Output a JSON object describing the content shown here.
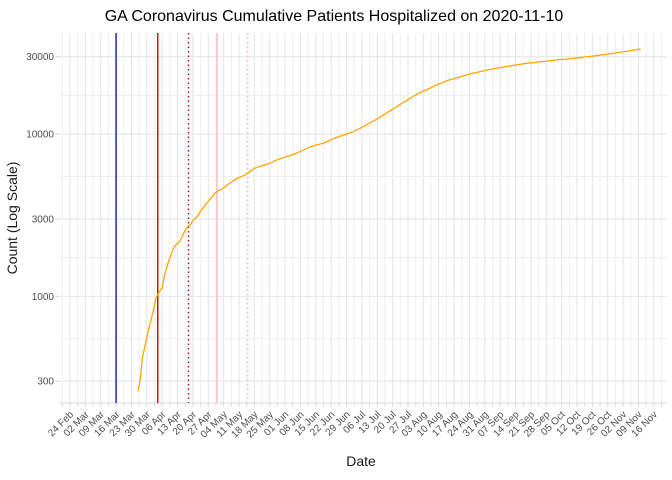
{
  "chart_data": {
    "type": "line",
    "title": "GA Coronavirus Cumulative Patients Hospitalized on 2020-11-10",
    "xlabel": "Date",
    "ylabel": "Count (Log Scale)",
    "x_scale": "date",
    "y_scale": "log10",
    "grid": true,
    "legend": false,
    "x_domain": [
      "2020-02-19",
      "2020-11-22"
    ],
    "y_domain": [
      220,
      42000
    ],
    "y_ticks": [
      300,
      1000,
      3000,
      10000,
      30000
    ],
    "x_tick_start": "2020-02-24",
    "x_tick_interval_days": 7,
    "x_tick_labels": [
      "24 Feb",
      "02 Mar",
      "09 Mar",
      "16 Mar",
      "23 Mar",
      "30 Mar",
      "06 Apr",
      "13 Apr",
      "20 Apr",
      "27 Apr",
      "04 May",
      "11 May",
      "18 May",
      "25 May",
      "01 Jun",
      "08 Jun",
      "15 Jun",
      "22 Jun",
      "29 Jun",
      "06 Jul",
      "13 Jul",
      "20 Jul",
      "27 Jul",
      "03 Aug",
      "10 Aug",
      "17 Aug",
      "24 Aug",
      "31 Aug",
      "07 Sep",
      "14 Sep",
      "21 Sep",
      "28 Sep",
      "05 Oct",
      "12 Oct",
      "19 Oct",
      "26 Oct",
      "02 Nov",
      "09 Nov",
      "16 Nov"
    ],
    "reference_lines": [
      {
        "date": "2020-03-16",
        "color": "#1414CC",
        "style": "solid"
      },
      {
        "date": "2020-04-04",
        "color": "#CC0000",
        "style": "solid"
      },
      {
        "date": "2020-04-18",
        "color": "#CC0000",
        "style": "dotted"
      },
      {
        "date": "2020-05-01",
        "color": "#FFB6C1",
        "style": "solid"
      },
      {
        "date": "2020-05-15",
        "color": "#FFB6C1",
        "style": "dotted"
      }
    ],
    "series": [
      {
        "name": "cumulative_patients_hospitalized",
        "color": "#FFA500",
        "points": [
          [
            "2020-03-26",
            260
          ],
          [
            "2020-03-27",
            305
          ],
          [
            "2020-03-28",
            420
          ],
          [
            "2020-03-29",
            480
          ],
          [
            "2020-03-30",
            560
          ],
          [
            "2020-03-31",
            640
          ],
          [
            "2020-04-01",
            720
          ],
          [
            "2020-04-02",
            820
          ],
          [
            "2020-04-03",
            950
          ],
          [
            "2020-04-04",
            1030
          ],
          [
            "2020-04-05",
            1080
          ],
          [
            "2020-04-06",
            1130
          ],
          [
            "2020-04-07",
            1330
          ],
          [
            "2020-04-08",
            1500
          ],
          [
            "2020-04-09",
            1650
          ],
          [
            "2020-04-10",
            1790
          ],
          [
            "2020-04-11",
            1950
          ],
          [
            "2020-04-12",
            2060
          ],
          [
            "2020-04-13",
            2110
          ],
          [
            "2020-04-14",
            2180
          ],
          [
            "2020-04-15",
            2320
          ],
          [
            "2020-04-16",
            2480
          ],
          [
            "2020-04-17",
            2620
          ],
          [
            "2020-04-18",
            2720
          ],
          [
            "2020-04-19",
            2780
          ],
          [
            "2020-04-20",
            2930
          ],
          [
            "2020-04-21",
            3020
          ],
          [
            "2020-04-22",
            3110
          ],
          [
            "2020-04-23",
            3270
          ],
          [
            "2020-04-24",
            3420
          ],
          [
            "2020-04-25",
            3560
          ],
          [
            "2020-04-26",
            3720
          ],
          [
            "2020-04-27",
            3850
          ],
          [
            "2020-04-28",
            4000
          ],
          [
            "2020-04-29",
            4150
          ],
          [
            "2020-04-30",
            4320
          ],
          [
            "2020-05-01",
            4420
          ],
          [
            "2020-05-02",
            4500
          ],
          [
            "2020-05-03",
            4560
          ],
          [
            "2020-05-04",
            4660
          ],
          [
            "2020-05-06",
            4900
          ],
          [
            "2020-05-08",
            5110
          ],
          [
            "2020-05-10",
            5320
          ],
          [
            "2020-05-12",
            5460
          ],
          [
            "2020-05-14",
            5620
          ],
          [
            "2020-05-16",
            5900
          ],
          [
            "2020-05-18",
            6150
          ],
          [
            "2020-05-20",
            6290
          ],
          [
            "2020-05-22",
            6410
          ],
          [
            "2020-05-25",
            6620
          ],
          [
            "2020-05-28",
            6900
          ],
          [
            "2020-05-31",
            7150
          ],
          [
            "2020-06-03",
            7350
          ],
          [
            "2020-06-06",
            7600
          ],
          [
            "2020-06-09",
            7950
          ],
          [
            "2020-06-12",
            8300
          ],
          [
            "2020-06-15",
            8550
          ],
          [
            "2020-06-18",
            8750
          ],
          [
            "2020-06-21",
            9100
          ],
          [
            "2020-06-24",
            9500
          ],
          [
            "2020-06-27",
            9800
          ],
          [
            "2020-06-30",
            10100
          ],
          [
            "2020-07-03",
            10500
          ],
          [
            "2020-07-06",
            11000
          ],
          [
            "2020-07-09",
            11600
          ],
          [
            "2020-07-12",
            12200
          ],
          [
            "2020-07-15",
            12900
          ],
          [
            "2020-07-18",
            13700
          ],
          [
            "2020-07-21",
            14500
          ],
          [
            "2020-07-24",
            15400
          ],
          [
            "2020-07-27",
            16300
          ],
          [
            "2020-07-30",
            17300
          ],
          [
            "2020-08-02",
            18200
          ],
          [
            "2020-08-05",
            18900
          ],
          [
            "2020-08-08",
            19800
          ],
          [
            "2020-08-11",
            20600
          ],
          [
            "2020-08-14",
            21400
          ],
          [
            "2020-08-17",
            22000
          ],
          [
            "2020-08-20",
            22600
          ],
          [
            "2020-08-23",
            23200
          ],
          [
            "2020-08-26",
            23800
          ],
          [
            "2020-08-29",
            24300
          ],
          [
            "2020-09-01",
            24800
          ],
          [
            "2020-09-04",
            25300
          ],
          [
            "2020-09-07",
            25700
          ],
          [
            "2020-09-10",
            26100
          ],
          [
            "2020-09-13",
            26500
          ],
          [
            "2020-09-16",
            26900
          ],
          [
            "2020-09-19",
            27300
          ],
          [
            "2020-09-22",
            27600
          ],
          [
            "2020-09-25",
            27900
          ],
          [
            "2020-09-28",
            28200
          ],
          [
            "2020-10-01",
            28500
          ],
          [
            "2020-10-04",
            28800
          ],
          [
            "2020-10-07",
            29000
          ],
          [
            "2020-10-10",
            29300
          ],
          [
            "2020-10-13",
            29600
          ],
          [
            "2020-10-16",
            29900
          ],
          [
            "2020-10-19",
            30200
          ],
          [
            "2020-10-22",
            30600
          ],
          [
            "2020-10-25",
            31000
          ],
          [
            "2020-10-28",
            31400
          ],
          [
            "2020-10-31",
            31900
          ],
          [
            "2020-11-03",
            32300
          ],
          [
            "2020-11-06",
            32800
          ],
          [
            "2020-11-08",
            33100
          ],
          [
            "2020-11-10",
            33500
          ]
        ]
      }
    ]
  }
}
